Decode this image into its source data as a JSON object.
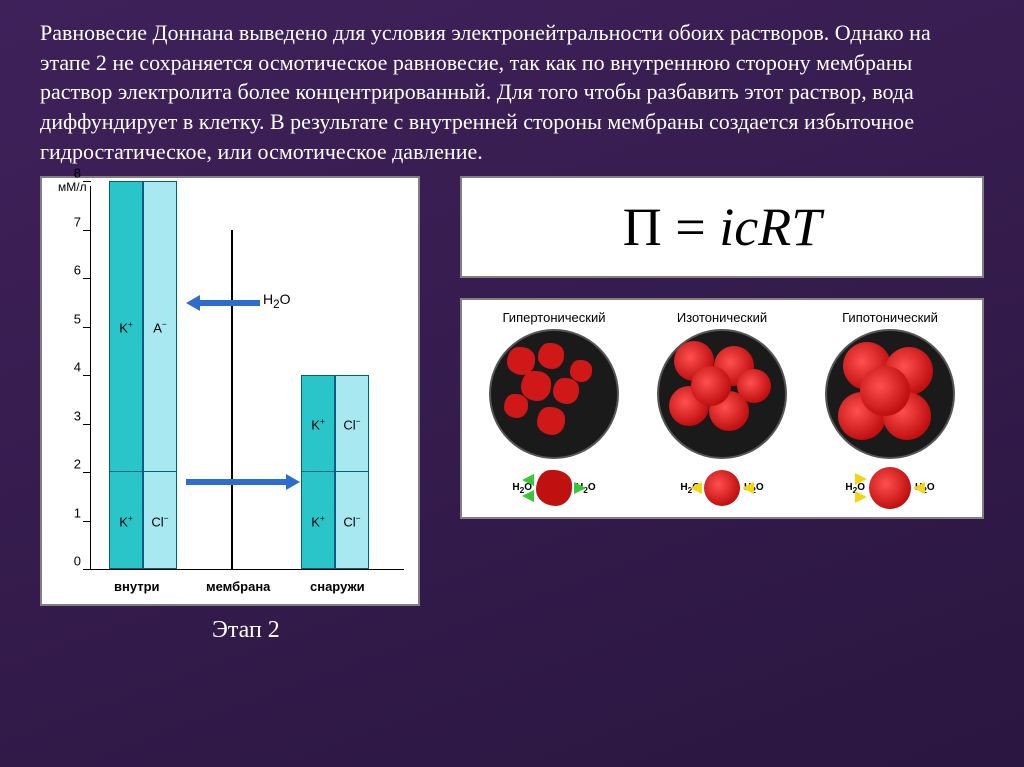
{
  "paragraph": "Равновесие Доннана выведено для условия электронейтральности обоих растворов. Однако на этапе 2 не сохраняется осмотическое равновесие, так как по внутреннюю сторону мембраны раствор электролита более концентрированный. Для того чтобы разбавить этот раствор, вода диффундирует в клетку. В результате с внутренней стороны мембраны создается избыточное гидростатическое, или осмотическое давление.",
  "chart": {
    "type": "bar",
    "y_unit": "мМ/л",
    "ylim": [
      0,
      8
    ],
    "ytick_step": 1,
    "bar_colors": {
      "left": "#29c5c9",
      "right": "#a8e8f0",
      "border": "#006080"
    },
    "inside": {
      "x_label": "внутри",
      "height": 8,
      "segments_left": [
        {
          "from": 0,
          "to": 2,
          "label": "K⁺"
        },
        {
          "from": 2,
          "to": 8,
          "label": "K⁺"
        }
      ],
      "segments_right": [
        {
          "from": 0,
          "to": 2,
          "label": "Cl⁻"
        },
        {
          "from": 2,
          "to": 8,
          "label": "A⁻"
        }
      ]
    },
    "membrane": {
      "x_label": "мембрана",
      "height": 7
    },
    "outside": {
      "x_label": "снаружи",
      "height": 4,
      "segments_left": [
        {
          "from": 0,
          "to": 2,
          "label": "K⁺"
        },
        {
          "from": 2,
          "to": 4,
          "label": "K⁺"
        }
      ],
      "segments_right": [
        {
          "from": 0,
          "to": 2,
          "label": "Cl⁻"
        },
        {
          "from": 2,
          "to": 4,
          "label": "Cl⁻"
        }
      ]
    },
    "arrows": {
      "h2o": {
        "label": "H₂O",
        "direction": "left",
        "y": 5.5,
        "color": "#2d6dd0"
      },
      "ions": {
        "direction": "right",
        "y": 1.8,
        "color": "#2d6dd0"
      }
    },
    "stage_label": "Этап 2"
  },
  "formula": "П = icRT",
  "cells": {
    "background": "#1a1a1a",
    "rbc_color": "#d01818",
    "arrow_green": "#39c639",
    "arrow_yellow": "#f5d513",
    "water_label": "H₂O",
    "types": [
      {
        "title": "Гипертонический",
        "key": "hyper"
      },
      {
        "title": "Изотонический",
        "key": "iso"
      },
      {
        "title": "Гипотонический",
        "key": "hypo"
      }
    ]
  }
}
